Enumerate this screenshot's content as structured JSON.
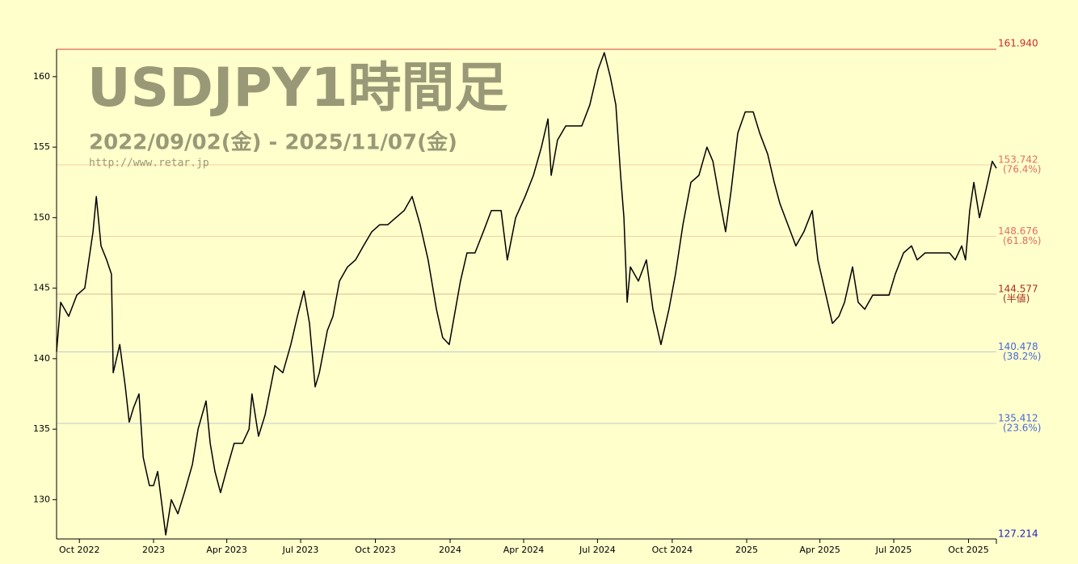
{
  "chart_data": {
    "type": "line",
    "title": "USDJPY1時間足",
    "subtitle": "2022/09/02(金) - 2025/11/07(金)",
    "source": "http://www.retar.jp",
    "color": "#000000",
    "background": "#ffffcc",
    "xlim": [
      2022.673,
      2025.842
    ],
    "ylim": [
      127.214,
      161.94
    ],
    "yticks": [
      130,
      135,
      140,
      145,
      150,
      155,
      160
    ],
    "xticks": [
      {
        "value": 2022.75,
        "label": "Oct 2022"
      },
      {
        "value": 2023.0,
        "label": "2023"
      },
      {
        "value": 2023.247,
        "label": "Apr 2023"
      },
      {
        "value": 2023.496,
        "label": "Jul 2023"
      },
      {
        "value": 2023.748,
        "label": "Oct 2023"
      },
      {
        "value": 2024.0,
        "label": "2024"
      },
      {
        "value": 2024.248,
        "label": "Apr 2024"
      },
      {
        "value": 2024.497,
        "label": "Jul 2024"
      },
      {
        "value": 2024.749,
        "label": "Oct 2024"
      },
      {
        "value": 2025.0,
        "label": "2025"
      },
      {
        "value": 2025.247,
        "label": "Apr 2025"
      },
      {
        "value": 2025.496,
        "label": "Jul 2025"
      },
      {
        "value": 2025.748,
        "label": "Oct 2025"
      }
    ],
    "levels": [
      {
        "value": 161.94,
        "label": "161.940",
        "color": "#d02a2a"
      },
      {
        "value": 153.742,
        "label": "153.742",
        "note": "(76.4%)",
        "color": "#e07060"
      },
      {
        "value": 148.676,
        "label": "148.676",
        "note": "(61.8%)",
        "color": "#e07060"
      },
      {
        "value": 144.577,
        "label": "144.577",
        "note": "(半値)",
        "color": "#a83020"
      },
      {
        "value": 140.478,
        "label": "140.478",
        "note": "(38.2%)",
        "color": "#4a68d8"
      },
      {
        "value": 135.412,
        "label": "135.412",
        "note": "(23.6%)",
        "color": "#4a68d8"
      },
      {
        "value": 127.214,
        "label": "127.214",
        "color": "#2020c0"
      }
    ],
    "x": [
      2022.673,
      2022.687,
      2022.714,
      2022.741,
      2022.768,
      2022.796,
      2022.807,
      2022.823,
      2022.842,
      2022.858,
      2022.864,
      2022.886,
      2022.905,
      2022.918,
      2022.932,
      2022.951,
      2022.965,
      2022.986,
      2023.0,
      2023.014,
      2023.041,
      2023.06,
      2023.082,
      2023.104,
      2023.131,
      2023.15,
      2023.177,
      2023.191,
      2023.207,
      2023.226,
      2023.245,
      2023.272,
      2023.3,
      2023.322,
      2023.332,
      2023.354,
      2023.376,
      2023.409,
      2023.436,
      2023.463,
      2023.485,
      2023.507,
      2023.526,
      2023.545,
      2023.559,
      2023.586,
      2023.605,
      2023.627,
      2023.654,
      2023.681,
      2023.708,
      2023.736,
      2023.763,
      2023.79,
      2023.817,
      2023.845,
      2023.872,
      2023.899,
      2023.926,
      2023.954,
      2023.975,
      2023.997,
      2024.014,
      2024.035,
      2024.057,
      2024.084,
      2024.112,
      2024.139,
      2024.172,
      2024.193,
      2024.221,
      2024.253,
      2024.281,
      2024.308,
      2024.33,
      2024.341,
      2024.362,
      2024.39,
      2024.417,
      2024.444,
      2024.471,
      2024.499,
      2024.52,
      2024.54,
      2024.559,
      2024.575,
      2024.586,
      2024.597,
      2024.608,
      2024.635,
      2024.662,
      2024.684,
      2024.711,
      2024.738,
      2024.76,
      2024.785,
      2024.812,
      2024.839,
      2024.866,
      2024.886,
      2024.907,
      2024.929,
      2024.948,
      2024.97,
      2024.995,
      2025.022,
      2025.044,
      2025.071,
      2025.093,
      2025.112,
      2025.139,
      2025.166,
      2025.193,
      2025.221,
      2025.24,
      2025.262,
      2025.289,
      2025.311,
      2025.33,
      2025.357,
      2025.376,
      2025.398,
      2025.425,
      2025.452,
      2025.48,
      2025.501,
      2025.529,
      2025.556,
      2025.575,
      2025.602,
      2025.629,
      2025.657,
      2025.684,
      2025.703,
      2025.725,
      2025.738,
      2025.752,
      2025.766,
      2025.785,
      2025.807,
      2025.828,
      2025.842
    ],
    "values": [
      140.5,
      144,
      143,
      144.5,
      145,
      149,
      151.5,
      148,
      147,
      146,
      139,
      141,
      138,
      135.5,
      136.5,
      137.5,
      133,
      131,
      131,
      132,
      127.5,
      130,
      129,
      130.5,
      132.5,
      135,
      137,
      134,
      132,
      130.5,
      132,
      134,
      134,
      135,
      137.5,
      134.5,
      136,
      139.5,
      139,
      141,
      143,
      144.8,
      142.5,
      138,
      139,
      142,
      143,
      145.5,
      146.5,
      147,
      148,
      149,
      149.5,
      149.5,
      150,
      150.5,
      151.5,
      149.5,
      147,
      143.5,
      141.5,
      141,
      143,
      145.5,
      147.5,
      147.5,
      149,
      150.5,
      150.5,
      147,
      150,
      151.5,
      153,
      155,
      157,
      153,
      155.5,
      156.5,
      156.5,
      156.5,
      158,
      160.5,
      161.7,
      160,
      158,
      153,
      150,
      144,
      146.5,
      145.5,
      147,
      143.5,
      141,
      143.5,
      146,
      149.5,
      152.5,
      153,
      155,
      154,
      151.5,
      149,
      152,
      156,
      157.5,
      157.5,
      156,
      154.5,
      152.5,
      151,
      149.5,
      148,
      149,
      150.5,
      147,
      145,
      142.5,
      143,
      144,
      146.5,
      144,
      143.5,
      144.5,
      144.5,
      144.5,
      146,
      147.5,
      148,
      147,
      147.5,
      147.5,
      147.5,
      147.5,
      147,
      148,
      147,
      150.5,
      152.5,
      150,
      152,
      154,
      153.5
    ]
  }
}
